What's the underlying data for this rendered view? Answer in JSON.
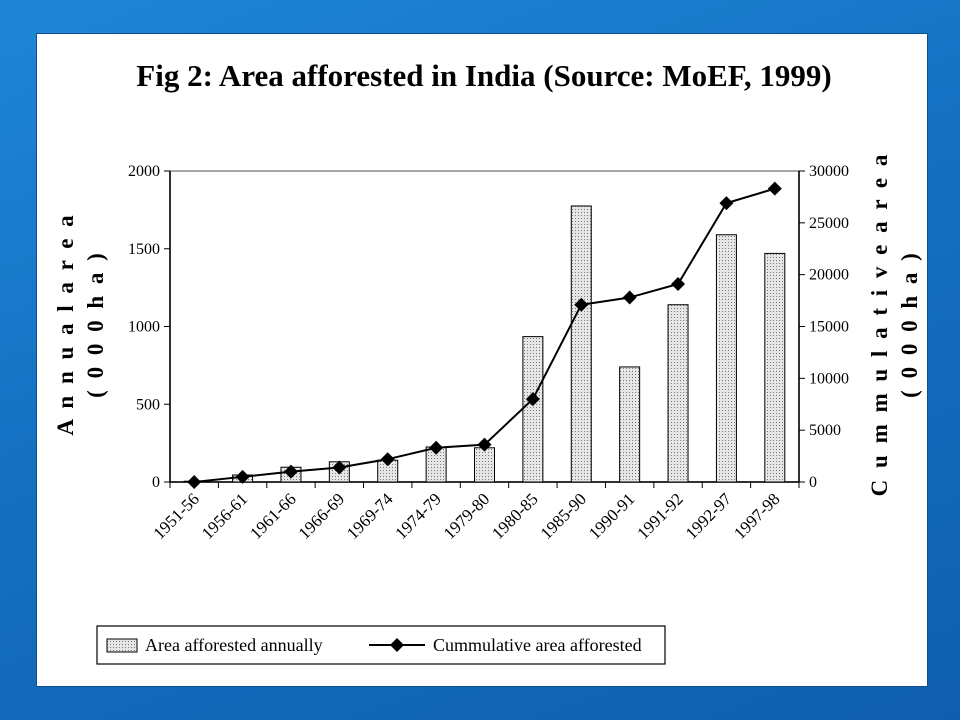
{
  "chart_data": {
    "type": "bar",
    "title": "Fig 2: Area afforested in India (Source: MoEF, 1999)",
    "categories": [
      "1951-56",
      "1956-61",
      "1961-66",
      "1966-69",
      "1969-74",
      "1974-79",
      "1979-80",
      "1980-85",
      "1985-90",
      "1990-91",
      "1991-92",
      "1992-97",
      "1997-98"
    ],
    "series": [
      {
        "name": "Area afforested annually",
        "kind": "bar",
        "axis": "left",
        "values": [
          5,
          45,
          95,
          130,
          140,
          225,
          220,
          935,
          1775,
          740,
          1140,
          1590,
          1470
        ]
      },
      {
        "name": "Cummulative area afforested",
        "kind": "line",
        "axis": "right",
        "values": [
          0,
          500,
          1000,
          1400,
          2200,
          3300,
          3600,
          8000,
          17100,
          17800,
          19100,
          26900,
          28300
        ]
      }
    ],
    "ylabel_left_line1": "A n n u a l  a r e a",
    "ylabel_left_line2": "( 0 0 0  h a )",
    "ylabel_right_line1": "C u m m u l a t i v e  a r e a",
    "ylabel_right_line2": "( 0 0 0  h a )",
    "ylim_left": [
      0,
      2000
    ],
    "ylim_right": [
      0,
      30000
    ],
    "yticks_left": [
      0,
      500,
      1000,
      1500,
      2000
    ],
    "yticks_right": [
      0,
      5000,
      10000,
      15000,
      20000,
      25000,
      30000
    ],
    "grid": false,
    "legend_position": "bottom",
    "colors": {
      "bar_fill": "#e6e6e6",
      "bar_stroke": "#000000",
      "line": "#000000",
      "marker": "#000000"
    }
  }
}
